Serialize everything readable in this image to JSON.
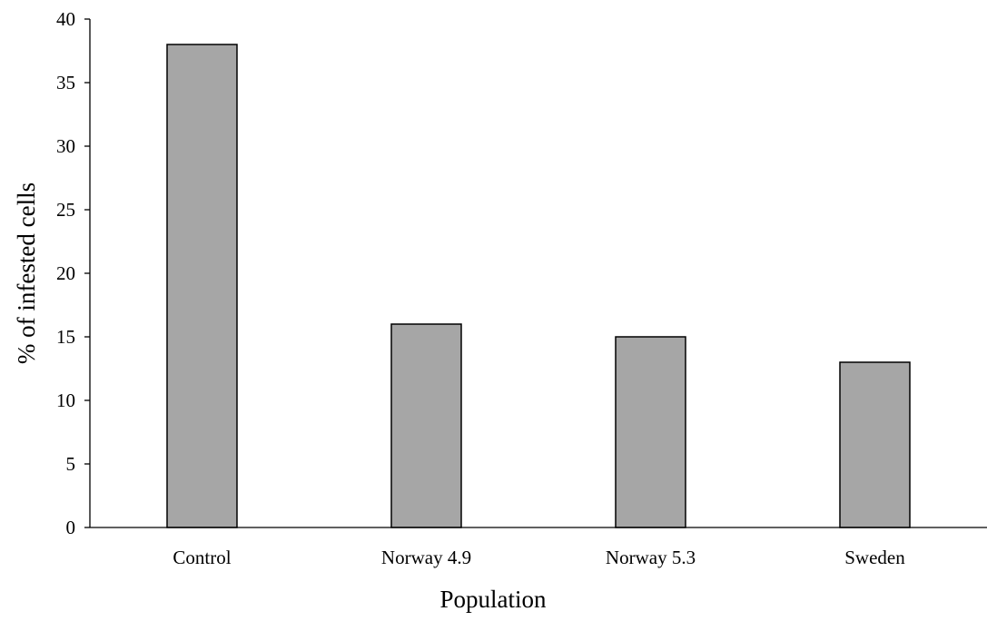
{
  "chart_data": {
    "type": "bar",
    "title": "",
    "xlabel": "Population",
    "ylabel": "% of infested cells",
    "categories": [
      "Control",
      "Norway 4.9",
      "Norway 5.3",
      "Sweden"
    ],
    "values": [
      38,
      16,
      15,
      13
    ],
    "ylim": [
      0,
      40
    ],
    "yticks": [
      0,
      5,
      10,
      15,
      20,
      25,
      30,
      35,
      40
    ],
    "ytick_labels": [
      "0",
      "5",
      "10",
      "15",
      "20",
      "25",
      "30",
      "35",
      "40"
    ],
    "grid": false,
    "legend": "none",
    "bar_color": "#a6a6a6",
    "bar_edge_color": "#000000"
  }
}
